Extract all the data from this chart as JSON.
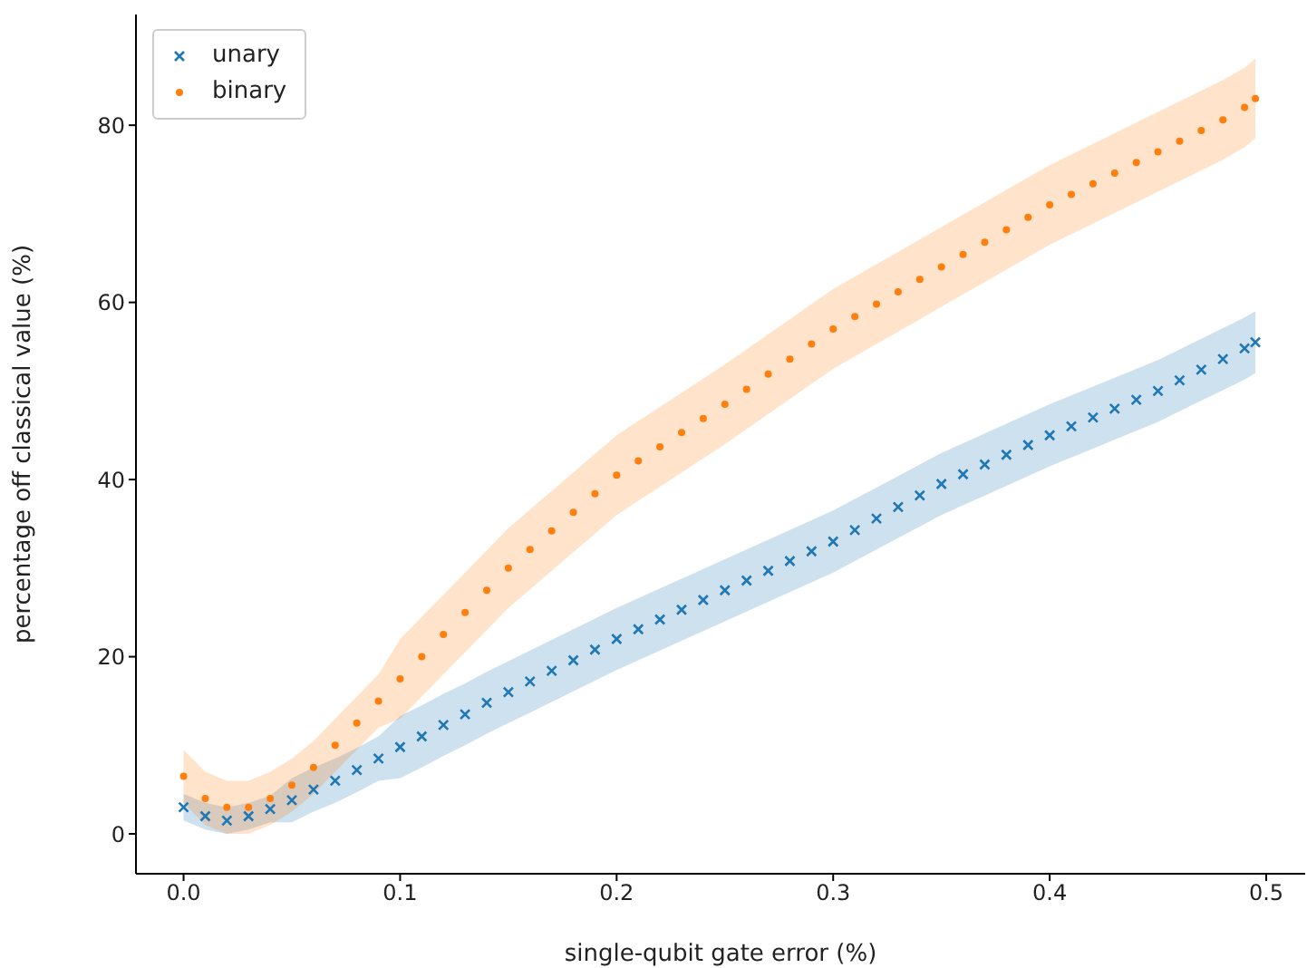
{
  "chart_data": {
    "type": "scatter",
    "xlabel": "single-qubit gate error (%)",
    "ylabel": "percentage off classical value (%)",
    "xlim": [
      -0.022,
      0.518
    ],
    "xticks": [
      {
        "value": 0,
        "label": "0.0"
      },
      0.1,
      0.2,
      0.3,
      0.4,
      0.5
    ],
    "ylim": [
      -4.5,
      92.5
    ],
    "yticks": [
      0,
      20,
      40,
      60,
      80
    ],
    "grid": false,
    "legend": "top left",
    "x": [
      0,
      0.01,
      0.02,
      0.03,
      0.04,
      0.05,
      0.06,
      0.07,
      0.08,
      0.09,
      0.1,
      0.11,
      0.12,
      0.13,
      0.14,
      0.15,
      0.16,
      0.17,
      0.18,
      0.19,
      0.2,
      0.21,
      0.22,
      0.23,
      0.24,
      0.25,
      0.26,
      0.27,
      0.28,
      0.29,
      0.3,
      0.31,
      0.32,
      0.33,
      0.34,
      0.35,
      0.36,
      0.37,
      0.38,
      0.39,
      0.4,
      0.41,
      0.42,
      0.43,
      0.44,
      0.45,
      0.46,
      0.47,
      0.48,
      0.49,
      0.495
    ],
    "series": [
      {
        "name": "unary",
        "color": "#1f77b4",
        "marker": "cross",
        "values": [
          3.0,
          2.0,
          1.5,
          2.0,
          2.8,
          3.8,
          5.0,
          6.0,
          7.2,
          8.5,
          9.8,
          11.0,
          12.3,
          13.5,
          14.8,
          16.0,
          17.2,
          18.4,
          19.6,
          20.8,
          22.0,
          23.1,
          24.2,
          25.3,
          26.4,
          27.5,
          28.6,
          29.7,
          30.8,
          31.9,
          33.0,
          34.3,
          35.6,
          36.9,
          38.2,
          39.5,
          40.6,
          41.7,
          42.8,
          43.9,
          45.0,
          46.0,
          47.0,
          48.0,
          49.0,
          50.0,
          51.2,
          52.4,
          53.6,
          54.8,
          55.5
        ],
        "lower": [
          1.5,
          0.5,
          0,
          0.5,
          1.3,
          1.3,
          2.5,
          3.5,
          4.7,
          6.0,
          6.3,
          7.5,
          8.8,
          10.0,
          11.3,
          12.5,
          13.7,
          14.9,
          16.1,
          17.3,
          18.5,
          19.6,
          20.7,
          21.8,
          22.9,
          24.0,
          25.1,
          26.2,
          27.3,
          28.4,
          29.5,
          30.8,
          32.1,
          33.4,
          34.7,
          36.0,
          37.1,
          38.2,
          39.3,
          40.4,
          41.5,
          42.5,
          43.5,
          44.5,
          45.5,
          46.5,
          47.7,
          48.9,
          50.1,
          51.3,
          52.0
        ],
        "upper": [
          4.5,
          3.5,
          3.0,
          3.5,
          4.3,
          6.3,
          7.5,
          8.5,
          9.7,
          11.0,
          13.3,
          14.5,
          15.8,
          17.0,
          18.3,
          19.5,
          20.7,
          21.9,
          23.1,
          24.3,
          25.5,
          26.6,
          27.7,
          28.8,
          29.9,
          31.0,
          32.1,
          33.2,
          34.3,
          35.4,
          36.5,
          37.8,
          39.1,
          40.4,
          41.7,
          43.0,
          44.1,
          45.2,
          46.3,
          47.4,
          48.5,
          49.5,
          50.5,
          51.5,
          52.5,
          53.5,
          54.7,
          55.9,
          57.1,
          58.3,
          59.0
        ]
      },
      {
        "name": "binary",
        "color": "#ff7f0e",
        "marker": "circle",
        "values": [
          6.5,
          4.0,
          3.0,
          3.0,
          4.0,
          5.5,
          7.5,
          10.0,
          12.5,
          15.0,
          17.5,
          20.0,
          22.5,
          25.0,
          27.5,
          30.0,
          32.1,
          34.2,
          36.3,
          38.4,
          40.5,
          42.1,
          43.7,
          45.3,
          46.9,
          48.5,
          50.2,
          51.9,
          53.6,
          55.3,
          57.0,
          58.4,
          59.8,
          61.2,
          62.6,
          64.0,
          65.4,
          66.8,
          68.2,
          69.6,
          71.0,
          72.2,
          73.4,
          74.6,
          75.8,
          77.0,
          78.2,
          79.4,
          80.6,
          82.0,
          83.0
        ],
        "lower": [
          3.5,
          1.0,
          0,
          0,
          1.0,
          2.5,
          4.5,
          7.0,
          9.5,
          12.0,
          13.0,
          15.5,
          18.0,
          20.5,
          23.0,
          25.5,
          27.6,
          29.7,
          31.8,
          33.9,
          36.0,
          37.6,
          39.2,
          40.8,
          42.4,
          44.0,
          45.7,
          47.4,
          49.1,
          50.8,
          52.5,
          53.9,
          55.3,
          56.7,
          58.1,
          59.5,
          60.9,
          62.3,
          63.7,
          65.1,
          66.5,
          67.7,
          68.9,
          70.1,
          71.3,
          72.5,
          73.7,
          74.9,
          76.1,
          77.5,
          78.5
        ],
        "upper": [
          9.5,
          7.0,
          6.0,
          6.0,
          7.0,
          8.5,
          10.5,
          13.0,
          15.5,
          18.0,
          22.0,
          24.5,
          27.0,
          29.5,
          32.0,
          34.5,
          36.6,
          38.7,
          40.8,
          42.9,
          45.0,
          46.6,
          48.2,
          49.8,
          51.4,
          53.0,
          54.7,
          56.4,
          58.1,
          59.8,
          61.5,
          62.9,
          64.3,
          65.7,
          67.1,
          68.5,
          69.9,
          71.3,
          72.7,
          74.1,
          75.5,
          76.7,
          77.9,
          79.1,
          80.3,
          81.5,
          82.7,
          83.9,
          85.1,
          86.5,
          87.5
        ]
      }
    ]
  }
}
